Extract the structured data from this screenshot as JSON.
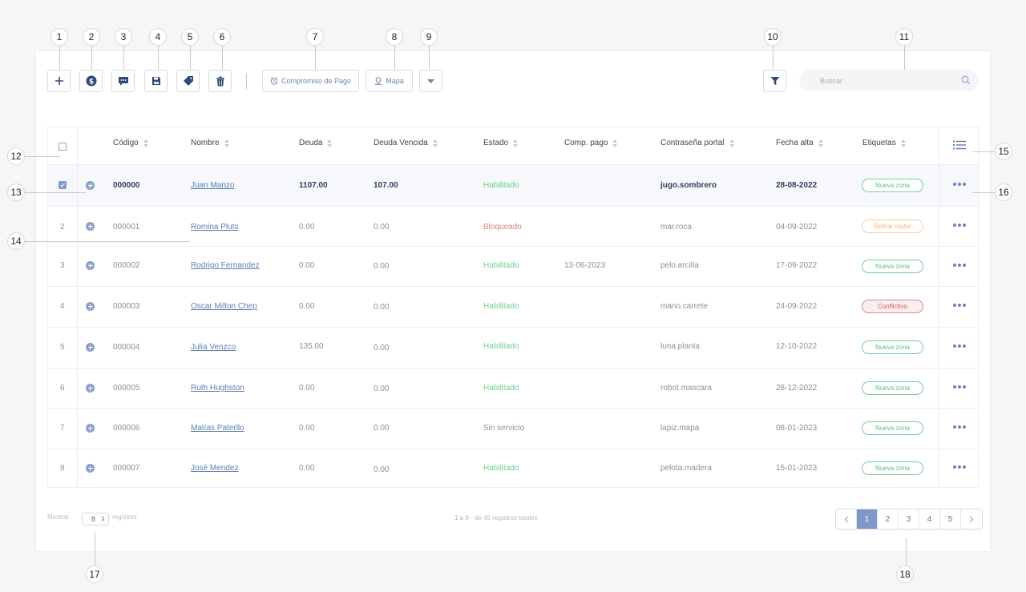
{
  "callouts": [
    "1",
    "2",
    "3",
    "4",
    "5",
    "6",
    "7",
    "8",
    "9",
    "10",
    "11",
    "12",
    "13",
    "14",
    "15",
    "16",
    "17",
    "18"
  ],
  "toolbar": {
    "commitment_label": "Compromiso de Pago",
    "map_label": "Mapa"
  },
  "search": {
    "placeholder": "Buscar"
  },
  "columns": [
    "Código",
    "Nombre",
    "Deuda",
    "Deuda Vencida",
    "Estado",
    "Comp. pago",
    "Contraseña portal",
    "Fecha alta",
    "Etiquetas"
  ],
  "rows": [
    {
      "idx": "",
      "selected": true,
      "code": "000000",
      "name": "Juan Manzo",
      "debt": "1107.00",
      "overdue": "107.00",
      "status": "Habilitado",
      "status_kind": "ok",
      "comp": "",
      "password": "jugo.sombrero",
      "date": "28-08-2022",
      "tag": "Nueva zona",
      "tag_color": "green"
    },
    {
      "idx": "2",
      "selected": false,
      "code": "000001",
      "name": "Romina Pluts",
      "debt": "0.00",
      "overdue": "0.00",
      "status": "Bloqueado",
      "status_kind": "bad",
      "comp": "",
      "password": "mar.roca",
      "date": "04-09-2022",
      "tag": "Retirar router",
      "tag_color": "orange"
    },
    {
      "idx": "3",
      "selected": false,
      "code": "000002",
      "name": "Rodrigo Fernandez",
      "debt": "0.00",
      "overdue": "0.00",
      "status": "Habilitado",
      "status_kind": "ok",
      "comp": "13-06-2023",
      "password": "pelo.arcilla",
      "date": "17-09-2022",
      "tag": "Nueva zona",
      "tag_color": "green"
    },
    {
      "idx": "4",
      "selected": false,
      "code": "000003",
      "name": "Oscar Milton Chep",
      "debt": "0.00",
      "overdue": "0.00",
      "status": "Habilitado",
      "status_kind": "ok",
      "comp": "",
      "password": "mano.carrete",
      "date": "24-09-2022",
      "tag": "Conflictivo",
      "tag_color": "red"
    },
    {
      "idx": "5",
      "selected": false,
      "code": "000004",
      "name": "Julia Venzco",
      "debt": "135.00",
      "overdue": "0.00",
      "status": "Habilitado",
      "status_kind": "ok",
      "comp": "",
      "password": "luna.planta",
      "date": "12-10-2022",
      "tag": "Nueva zona",
      "tag_color": "green"
    },
    {
      "idx": "6",
      "selected": false,
      "code": "000005",
      "name": "Ruth Hughston",
      "debt": "0.00",
      "overdue": "0.00",
      "status": "Habilitado",
      "status_kind": "ok",
      "comp": "",
      "password": "robot.mascara",
      "date": "28-12-2022",
      "tag": "Nueva zona",
      "tag_color": "green"
    },
    {
      "idx": "7",
      "selected": false,
      "code": "000006",
      "name": "Matías Paterllo",
      "debt": "0.00",
      "overdue": "0.00",
      "status": "Sin servicio",
      "status_kind": "none",
      "comp": "",
      "password": "lapiz.mapa",
      "date": "08-01-2023",
      "tag": "Nueva zona",
      "tag_color": "green"
    },
    {
      "idx": "8",
      "selected": false,
      "code": "000007",
      "name": "José Mendez",
      "debt": "0.00",
      "overdue": "0.00",
      "status": "Habilitado",
      "status_kind": "ok",
      "comp": "",
      "password": "pelota.madera",
      "date": "15-01-2023",
      "tag": "Nueva zona",
      "tag_color": "green"
    }
  ],
  "footer": {
    "show_label": "Mostrar",
    "page_size": "8",
    "records_label": "registros",
    "summary": "1 a 8 - de 45 registros totales"
  },
  "pagination": {
    "pages": [
      "1",
      "2",
      "3",
      "4",
      "5"
    ],
    "current": "1"
  },
  "colors": {
    "accent": "#7d98c9",
    "ok": "#6fcf8e",
    "bad": "#e57f7f",
    "link": "#5a7fb5"
  },
  "icons": [
    "plus-icon",
    "dollar-icon",
    "message-icon",
    "save-icon",
    "tag-icon",
    "trash-icon",
    "alarm-clock-icon",
    "map-pin-icon",
    "chevron-down-icon",
    "filter-icon",
    "search-icon",
    "list-icon",
    "more-icon"
  ]
}
